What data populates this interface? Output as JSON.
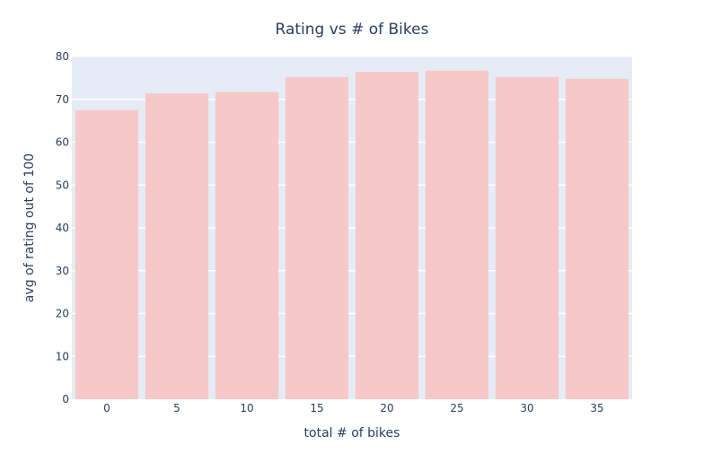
{
  "chart_data": {
    "type": "bar",
    "title": "Rating vs # of Bikes",
    "xlabel": "total # of bikes",
    "ylabel": "avg of rating out of 100",
    "categories": [
      "0",
      "5",
      "10",
      "15",
      "20",
      "25",
      "30",
      "35"
    ],
    "values": [
      67.5,
      71.4,
      71.7,
      75.2,
      76.4,
      76.7,
      75.2,
      74.8
    ],
    "ylim": [
      0,
      80
    ],
    "yticks": [
      0,
      10,
      20,
      30,
      40,
      50,
      60,
      70,
      80
    ],
    "grid": true,
    "bar_color": "#f7c8c8",
    "plot_bg_color": "#e5ecf6"
  }
}
